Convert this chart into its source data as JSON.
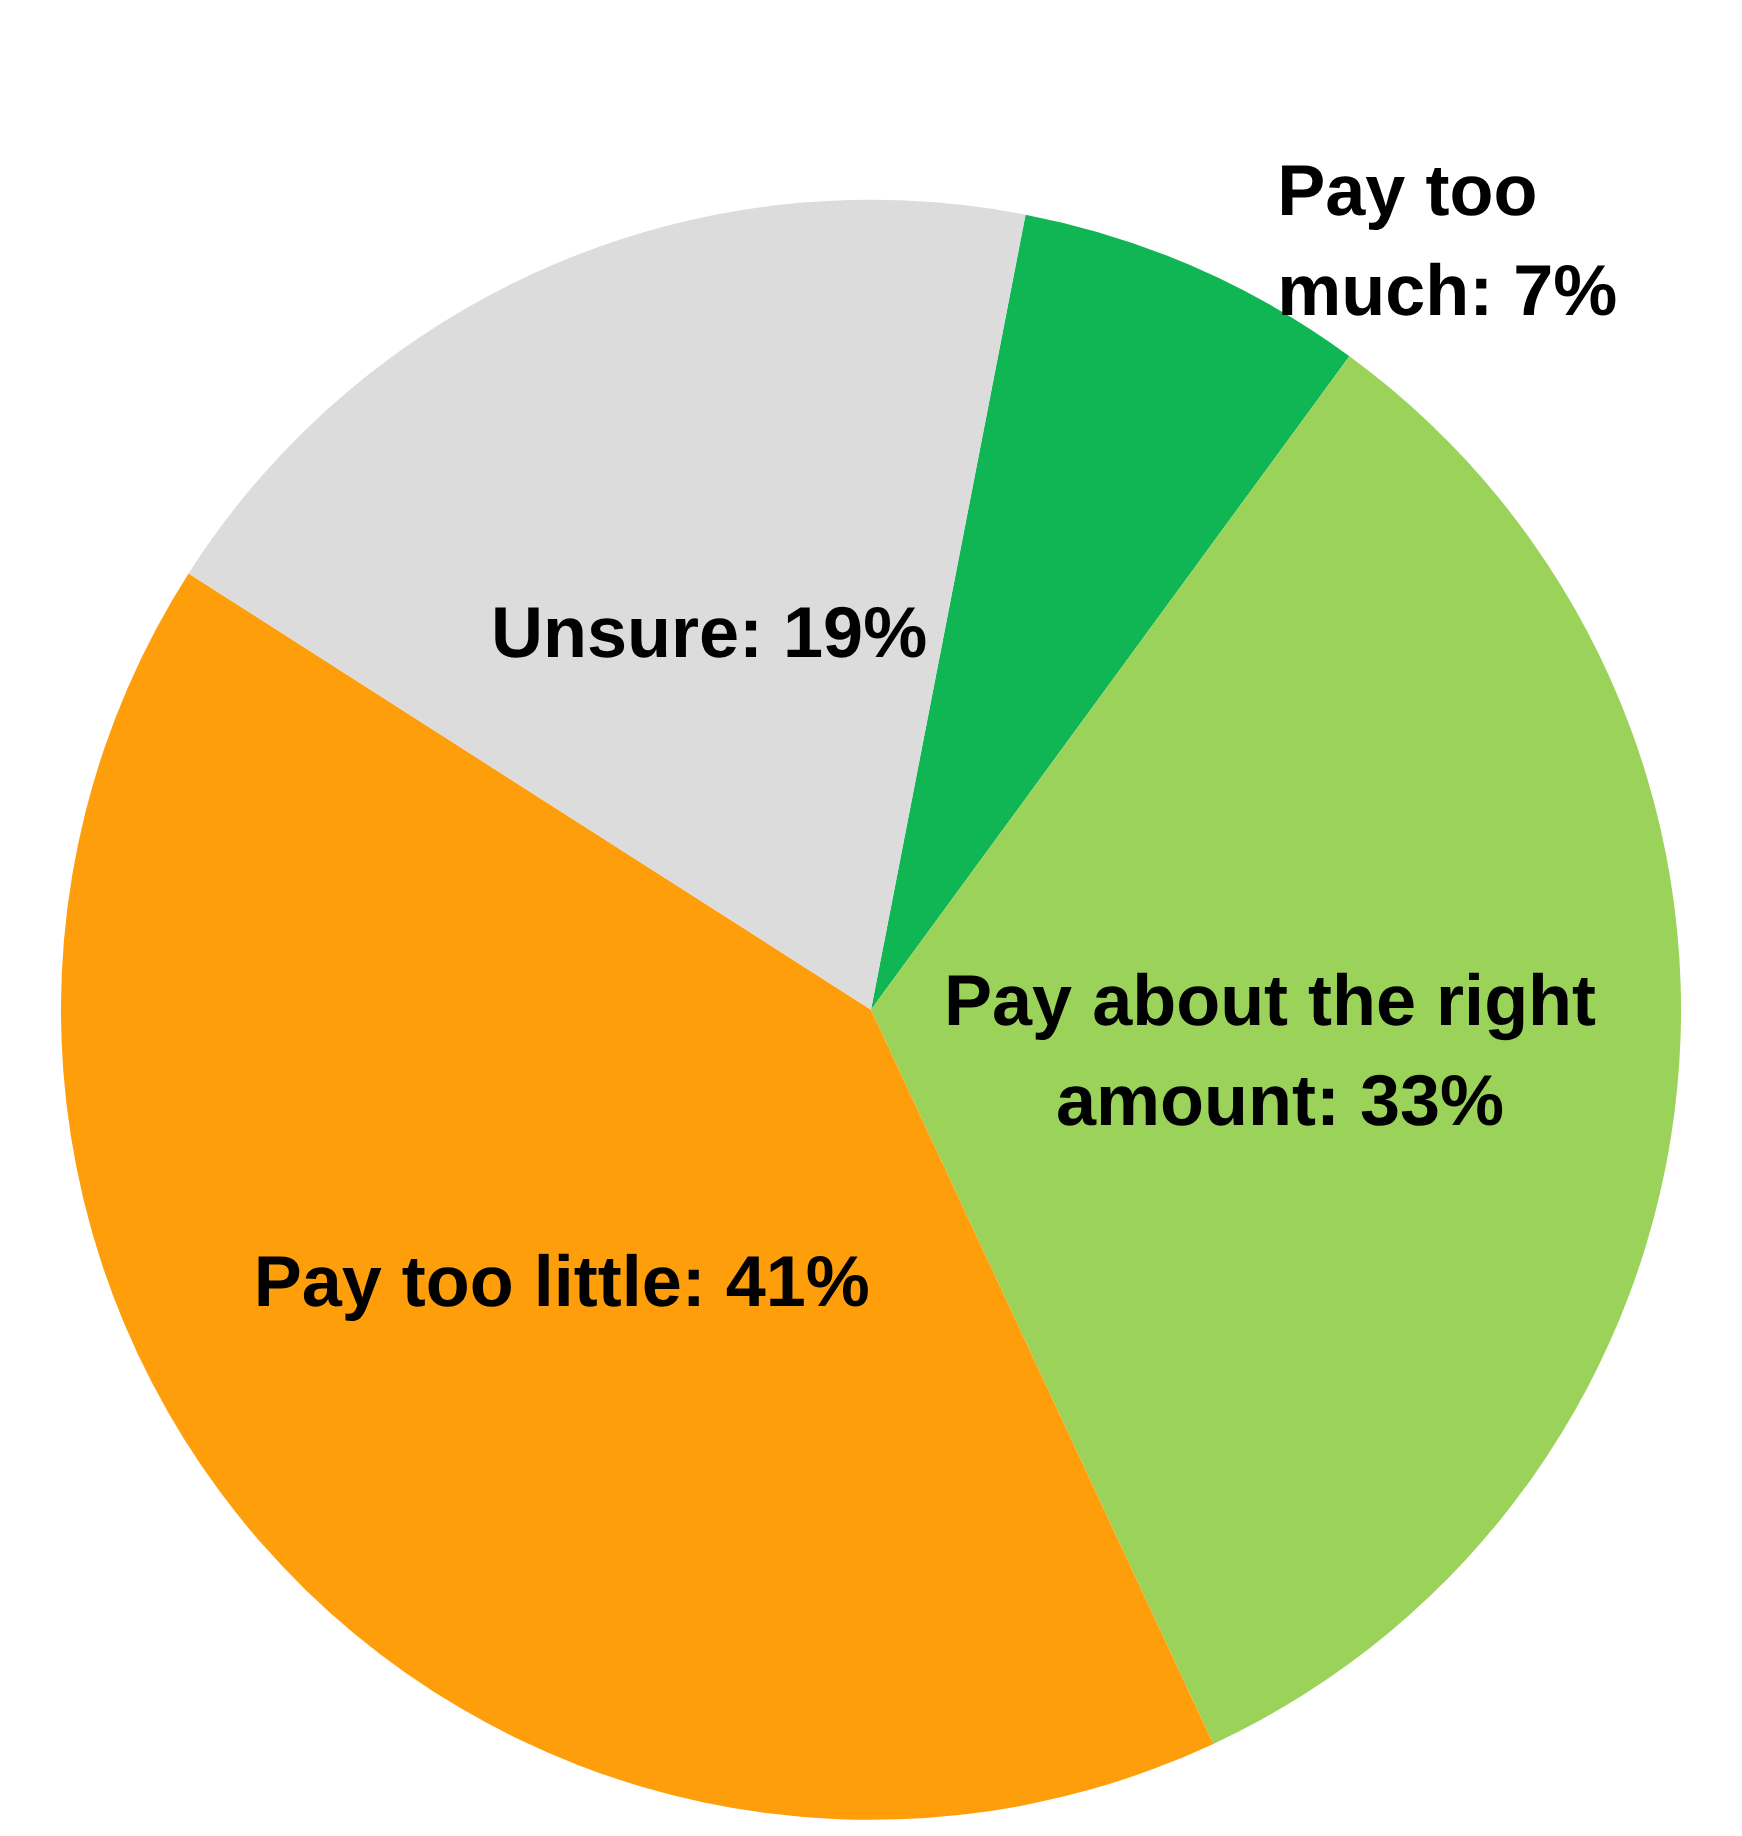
{
  "chart_data": {
    "type": "pie",
    "categories": [
      "Pay too much",
      "Pay about the right amount",
      "Pay too little",
      "Unsure"
    ],
    "values": [
      7,
      33,
      41,
      19
    ],
    "value_labels": [
      "7%",
      "33%",
      "41%",
      "19%"
    ],
    "colors": [
      "#10b554",
      "#9bd35a",
      "#ff9e0b",
      "#dcdcdc"
    ],
    "legend": false
  }
}
